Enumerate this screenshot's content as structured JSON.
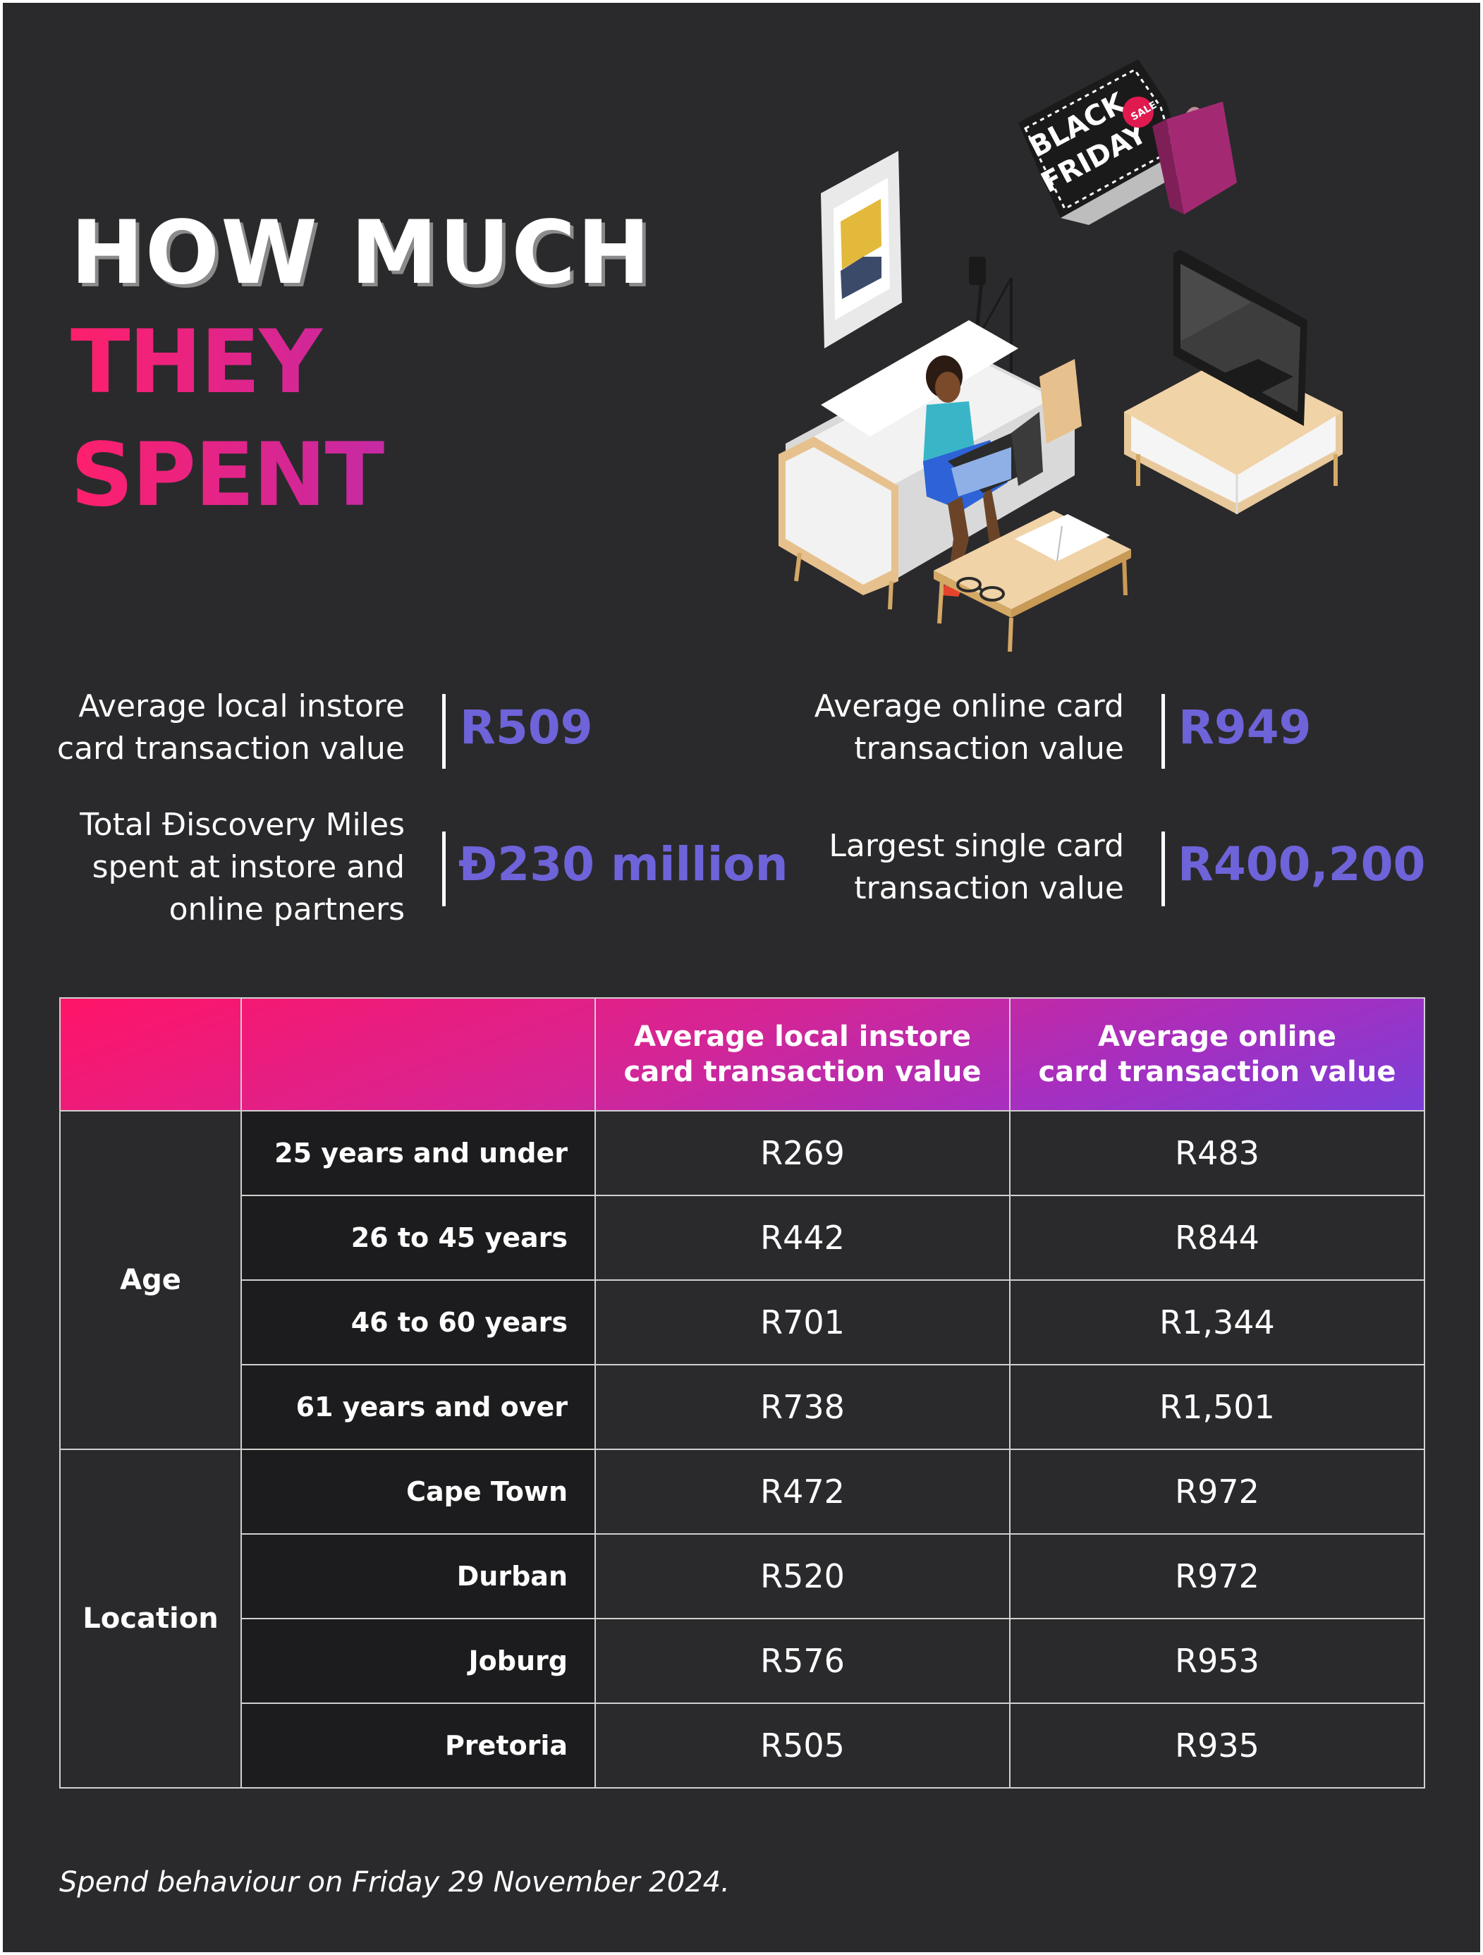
{
  "title": {
    "line1": "HOW MUCH",
    "line2": "THEY",
    "line3": "SPENT"
  },
  "illustration": {
    "sign_line1": "BLACK",
    "sign_line2": "FRIDAY",
    "sign_badge": "SALE"
  },
  "stats": [
    {
      "label_lines": [
        "Average local instore",
        "card transaction value"
      ],
      "value": "R509"
    },
    {
      "label_lines": [
        "Average online card",
        "transaction value"
      ],
      "value": "R949"
    },
    {
      "label_lines": [
        "Total Điscovery Miles",
        "spent at instore and",
        "online partners"
      ],
      "value": "Đ230 million"
    },
    {
      "label_lines": [
        "Largest single card",
        "transaction value"
      ],
      "value": "R400,200"
    }
  ],
  "table": {
    "headers": {
      "col3": [
        "Average local instore",
        "card transaction value"
      ],
      "col4": [
        "Average online",
        "card transaction value"
      ]
    },
    "groups": [
      {
        "name": "Age",
        "rows": [
          {
            "label": "25 years and under",
            "instore": "R269",
            "online": "R483"
          },
          {
            "label": "26 to 45 years",
            "instore": "R442",
            "online": "R844"
          },
          {
            "label": "46 to 60 years",
            "instore": "R701",
            "online": "R1,344"
          },
          {
            "label": "61 years and over",
            "instore": "R738",
            "online": "R1,501"
          }
        ]
      },
      {
        "name": "Location",
        "rows": [
          {
            "label": "Cape Town",
            "instore": "R472",
            "online": "R972"
          },
          {
            "label": "Durban",
            "instore": "R520",
            "online": "R972"
          },
          {
            "label": "Joburg",
            "instore": "R576",
            "online": "R953"
          },
          {
            "label": "Pretoria",
            "instore": "R505",
            "online": "R935"
          }
        ]
      }
    ]
  },
  "footnote": "Spend behaviour on Friday 29 November 2024.",
  "colors": {
    "background": "#2a2a2c",
    "accent_value": "#6e63d8",
    "gradient_start": "#ff1467",
    "gradient_end": "#7a3fd8"
  }
}
